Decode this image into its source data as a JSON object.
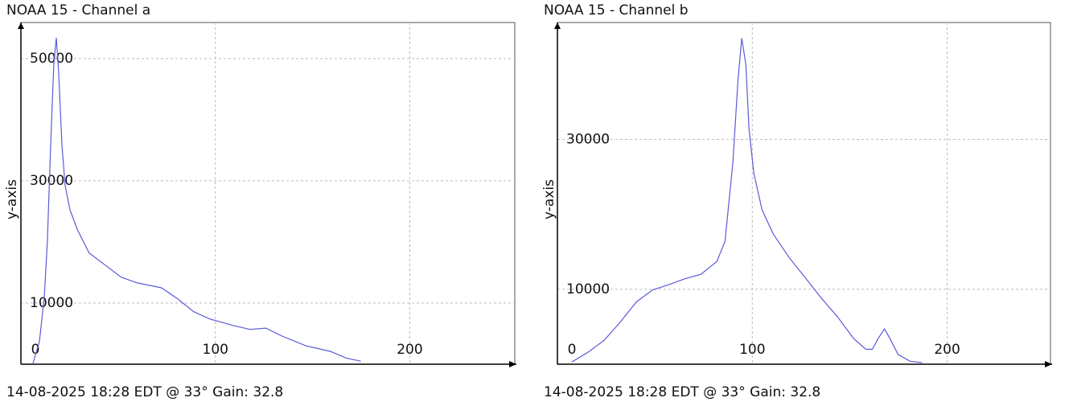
{
  "chart_data": [
    {
      "type": "line",
      "title": "NOAA 15 - Channel a",
      "y_label": "y-axis",
      "footer": "14-08-2025 18:28 EDT @ 33° Gain: 32.8",
      "x": [
        6.2,
        9.5,
        12.0,
        13.6,
        15.3,
        16.9,
        18.2,
        19.4,
        21.1,
        22.7,
        25.2,
        28.9,
        35.1,
        43.4,
        51.7,
        59.9,
        72.3,
        80.6,
        88.8,
        97.1,
        109.5,
        117.8,
        126.0,
        134.3,
        146.7,
        159.1,
        167.4,
        174.8
      ],
      "values": [
        132,
        3700,
        10900,
        20100,
        35900,
        49100,
        53400,
        47800,
        35900,
        29300,
        25300,
        22100,
        18200,
        16200,
        14200,
        13300,
        12500,
        10700,
        8600,
        7400,
        6300,
        5700,
        5900,
        4600,
        3000,
        2100,
        1000,
        500
      ],
      "color": "#5a5ad8",
      "xlim": [
        0,
        254
      ],
      "ylim": [
        0,
        55900
      ],
      "xticks": [
        0,
        100,
        200
      ],
      "yticks": [
        10000,
        30000,
        50000
      ],
      "grid": true
    },
    {
      "type": "line",
      "title": "NOAA 15 - Channel b",
      "y_label": "y-axis",
      "footer": "14-08-2025 18:28 EDT @ 33° Gain: 32.8",
      "x": [
        7.4,
        15.7,
        24.0,
        32.2,
        40.5,
        48.8,
        57.0,
        65.3,
        73.6,
        81.8,
        86.0,
        90.1,
        92.6,
        94.6,
        96.7,
        98.3,
        100.8,
        105.0,
        110.7,
        119.0,
        127.3,
        135.5,
        143.8,
        152.1,
        158.3,
        161.6,
        164.5,
        167.8,
        170.7,
        174.8,
        181.0,
        187.2
      ],
      "values": [
        300,
        1600,
        3200,
        5600,
        8300,
        9900,
        10600,
        11400,
        12000,
        13700,
        16400,
        27100,
        37800,
        43500,
        40000,
        31400,
        25500,
        20600,
        17400,
        14200,
        11500,
        8800,
        6300,
        3400,
        2000,
        2000,
        3400,
        4700,
        3400,
        1300,
        400,
        200
      ],
      "color": "#5a5ad8",
      "xlim": [
        0,
        253
      ],
      "ylim": [
        0,
        45600
      ],
      "xticks": [
        0,
        100,
        200
      ],
      "yticks": [
        10000,
        30000
      ],
      "grid": true
    }
  ]
}
